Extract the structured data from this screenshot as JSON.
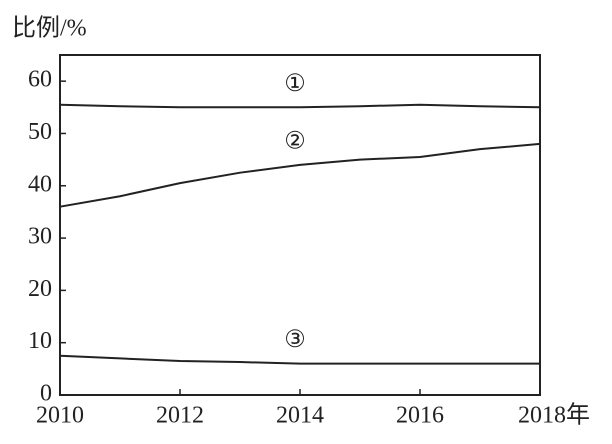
{
  "chart_data": {
    "type": "line",
    "y_label": "比例/%",
    "x": [
      2010,
      2011,
      2012,
      2013,
      2014,
      2015,
      2016,
      2017,
      2018
    ],
    "series": [
      {
        "name": "①",
        "color": "#222222",
        "values": [
          55.5,
          55.2,
          55,
          55,
          55,
          55.2,
          55.5,
          55.2,
          55
        ]
      },
      {
        "name": "②",
        "color": "#222222",
        "values": [
          36,
          38,
          40.5,
          42.5,
          44,
          45,
          45.5,
          47,
          48
        ]
      },
      {
        "name": "③",
        "color": "#222222",
        "values": [
          7.5,
          7,
          6.5,
          6.3,
          6,
          6,
          6,
          6,
          6
        ]
      }
    ],
    "xlim": [
      2010,
      2018
    ],
    "xticks": [
      2010,
      2012,
      2014,
      2016,
      {
        "value": 2018,
        "label": "2018年"
      }
    ],
    "ylim": [
      0,
      65
    ],
    "yticks": [
      0,
      10,
      20,
      30,
      40,
      50,
      60
    ],
    "grid": false
  }
}
